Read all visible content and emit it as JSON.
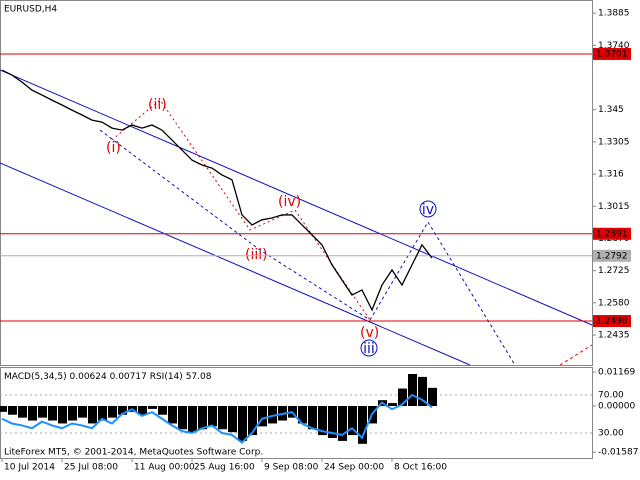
{
  "chart_data": [
    {
      "type": "line",
      "title": "EURUSD,H4",
      "categories": [
        "10 Jul 2014",
        null,
        null,
        null,
        null,
        null,
        "25 Jul 08:00",
        null,
        null,
        null,
        null,
        null,
        null,
        "11 Aug 00:00",
        null,
        null,
        null,
        null,
        null,
        "25 Aug 16:00",
        null,
        null,
        null,
        null,
        null,
        null,
        "9 Sep 08:00",
        null,
        null,
        null,
        null,
        null,
        "24 Sep 00:00",
        null,
        null,
        null,
        null,
        null,
        null,
        "8 Oct 16:00",
        null,
        null,
        null,
        null
      ],
      "values": [
        1.3628,
        1.3606,
        1.3574,
        1.3538,
        1.3516,
        1.3493,
        1.3471,
        1.3448,
        1.3426,
        1.3403,
        1.3394,
        1.3367,
        1.3358,
        1.3381,
        1.3367,
        1.3381,
        1.3358,
        1.3313,
        1.3268,
        1.3223,
        1.3201,
        1.3187,
        1.3156,
        1.3134,
        1.2976,
        1.2931,
        1.2954,
        1.2962,
        1.2976,
        1.2976,
        1.2931,
        1.2886,
        1.2841,
        1.2751,
        1.2683,
        1.2615,
        1.2638,
        1.2548,
        1.266,
        1.2728,
        1.266,
        1.2751,
        1.2841,
        1.2782
      ],
      "color": "#000000",
      "ylim": [
        1.23,
        1.3944
      ],
      "yticks": [
        1.3885,
        {
          "value": 1.374,
          "label": "1.3740"
        },
        1.345,
        1.3305,
        1.316,
        1.3015,
        {
          "value": 1.287,
          "label": "1.2870"
        },
        1.2725,
        {
          "value": 1.258,
          "label": "1.2580"
        },
        1.2435
      ],
      "levels": [
        {
          "value": 1.3701,
          "color": "#e00000"
        },
        {
          "value": 1.2891,
          "color": "#e00000"
        },
        {
          "value": 1.2498,
          "color": "#e00000"
        },
        {
          "value": 1.2792,
          "color": "#b0b0b0"
        }
      ],
      "annotations": [
        "(i)",
        "(ii)",
        "(iii)",
        "(iv)",
        "(v)",
        "iii",
        "iv"
      ]
    },
    {
      "type": "indicator",
      "series": [
        {
          "name": "MACD(5,34,5)",
          "readings": [
            0.00624,
            0.00717
          ],
          "color": "#000000",
          "values": [
            -0.002,
            -0.003,
            -0.004,
            -0.005,
            -0.004,
            -0.005,
            -0.006,
            -0.005,
            -0.004,
            -0.006,
            -0.005,
            -0.004,
            -0.003,
            -0.002,
            -0.003,
            -0.001,
            -0.003,
            -0.006,
            -0.008,
            -0.009,
            -0.008,
            -0.007,
            -0.008,
            -0.009,
            -0.012,
            -0.01,
            -0.007,
            -0.006,
            -0.005,
            -0.004,
            -0.006,
            -0.008,
            -0.01,
            -0.011,
            -0.012,
            -0.01,
            -0.013,
            -0.006,
            0.002,
            0.001,
            0.006,
            0.011,
            0.01,
            0.00624
          ]
        },
        {
          "name": "RSI(14)",
          "readings": [
            57.08
          ],
          "color": "#1e90ff",
          "axis": "y2",
          "values": [
            45,
            40,
            38,
            35,
            42,
            38,
            35,
            40,
            38,
            35,
            45,
            40,
            50,
            55,
            48,
            52,
            45,
            38,
            32,
            30,
            35,
            38,
            30,
            28,
            20,
            30,
            45,
            48,
            50,
            52,
            40,
            35,
            32,
            30,
            28,
            35,
            25,
            50,
            62,
            55,
            60,
            70,
            65,
            57.08
          ]
        }
      ],
      "ylim": [
        -0.01788,
        0.01341
      ],
      "yticks": [
        0.01169,
        {
          "value": 0,
          "label": "0.00000"
        },
        -0.01587
      ],
      "y2lim": [
        3.7,
        99.5
      ],
      "y2ticks": [
        {
          "value": 70,
          "label": "70.00"
        },
        {
          "value": 30,
          "label": "30.00"
        }
      ]
    }
  ],
  "footer": "LiteForex MT5, © 2001-2014, MetaQuotes Software Corp."
}
